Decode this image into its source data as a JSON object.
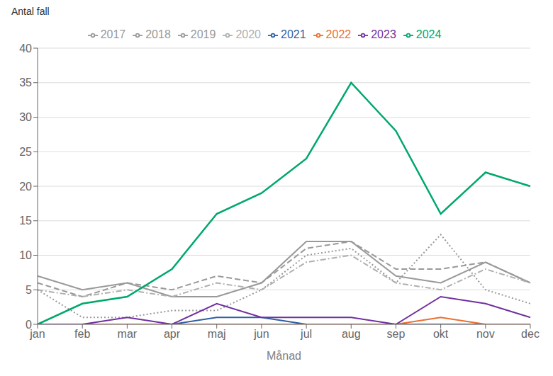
{
  "chart_data": {
    "type": "line",
    "categories": [
      "jan",
      "feb",
      "mar",
      "apr",
      "maj",
      "jun",
      "jul",
      "aug",
      "sep",
      "okt",
      "nov",
      "dec"
    ],
    "series": [
      {
        "name": "2017",
        "color": "#999999",
        "line_style": "solid",
        "values": [
          7,
          5,
          6,
          4,
          4,
          6,
          12,
          12,
          7,
          6,
          9,
          6
        ]
      },
      {
        "name": "2018",
        "color": "#999999",
        "line_style": "dashed",
        "values": [
          6,
          4,
          6,
          5,
          7,
          6,
          11,
          12,
          8,
          8,
          9,
          6
        ]
      },
      {
        "name": "2019",
        "color": "#999999",
        "line_style": "dotted",
        "values": [
          5,
          1,
          1,
          2,
          2,
          5,
          10,
          11,
          6,
          13,
          5,
          3
        ]
      },
      {
        "name": "2020",
        "color": "#b0b0b0",
        "line_style": "dashdot",
        "values": [
          5,
          4,
          5,
          4,
          6,
          5,
          9,
          10,
          6,
          5,
          8,
          6
        ]
      },
      {
        "name": "2021",
        "color": "#2e5fa3",
        "line_style": "solid",
        "values": [
          0,
          0,
          0,
          0,
          1,
          1,
          0,
          0,
          0,
          0,
          0,
          0
        ]
      },
      {
        "name": "2022",
        "color": "#e97132",
        "line_style": "solid",
        "values": [
          0,
          0,
          0,
          0,
          0,
          0,
          0,
          0,
          0,
          1,
          0,
          0
        ]
      },
      {
        "name": "2023",
        "color": "#7030a0",
        "line_style": "solid",
        "values": [
          0,
          0,
          1,
          0,
          3,
          1,
          1,
          1,
          0,
          4,
          3,
          1
        ]
      },
      {
        "name": "2024",
        "color": "#00a86b",
        "line_style": "solid",
        "values": [
          0,
          3,
          4,
          8,
          16,
          19,
          24,
          35,
          28,
          16,
          22,
          20
        ]
      }
    ],
    "xlabel": "Månad",
    "ylabel": "Antal fall",
    "ylim": [
      0,
      40
    ],
    "yticks": [
      0,
      5,
      10,
      15,
      20,
      25,
      30,
      35,
      40
    ],
    "grid": true,
    "legend": "top"
  }
}
